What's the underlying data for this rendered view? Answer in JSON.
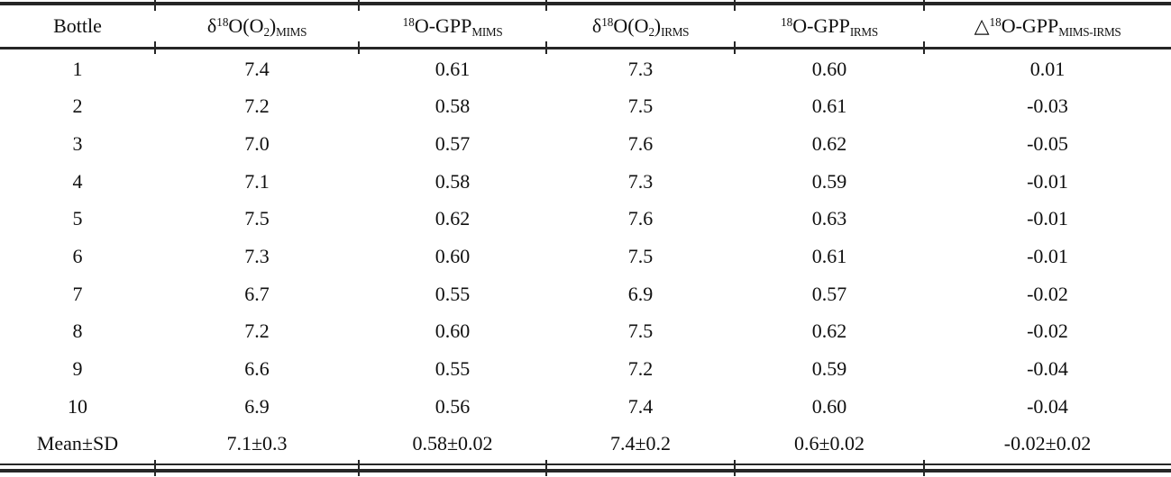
{
  "table": {
    "columns": [
      {
        "name": "bottle",
        "plain": "Bottle",
        "segments": [
          {
            "t": "text",
            "v": "Bottle"
          }
        ]
      },
      {
        "name": "d18O-O2-MIMS",
        "plain": "δ18O(O2)_MIMS",
        "segments": [
          {
            "t": "text",
            "v": "δ"
          },
          {
            "t": "sup",
            "v": "18"
          },
          {
            "t": "text",
            "v": "O(O"
          },
          {
            "t": "sub",
            "v": "2"
          },
          {
            "t": "text",
            "v": ")"
          },
          {
            "t": "sub",
            "v": "MIMS"
          }
        ]
      },
      {
        "name": "18O-GPP-MIMS",
        "plain": "18O-GPP_MIMS",
        "segments": [
          {
            "t": "sup",
            "v": "18"
          },
          {
            "t": "text",
            "v": "O-GPP"
          },
          {
            "t": "sub",
            "v": "MIMS"
          }
        ]
      },
      {
        "name": "d18O-O2-IRMS",
        "plain": "δ18O(O2)_IRMS",
        "segments": [
          {
            "t": "text",
            "v": "δ"
          },
          {
            "t": "sup",
            "v": "18"
          },
          {
            "t": "text",
            "v": "O(O"
          },
          {
            "t": "sub",
            "v": "2"
          },
          {
            "t": "text",
            "v": ")"
          },
          {
            "t": "sub",
            "v": "IRMS"
          }
        ]
      },
      {
        "name": "18O-GPP-IRMS",
        "plain": "18O-GPP_IRMS",
        "segments": [
          {
            "t": "sup",
            "v": "18"
          },
          {
            "t": "text",
            "v": "O-GPP"
          },
          {
            "t": "sub",
            "v": "IRMS"
          }
        ]
      },
      {
        "name": "delta-18O-GPP-MIMS-IRMS",
        "plain": "△18O-GPP_MIMS-IRMS",
        "segments": [
          {
            "t": "text",
            "v": "△"
          },
          {
            "t": "sup",
            "v": "18"
          },
          {
            "t": "text",
            "v": "O-GPP"
          },
          {
            "t": "sub",
            "v": "MIMS-IRMS"
          }
        ]
      }
    ],
    "rows": [
      [
        "1",
        "7.4",
        "0.61",
        "7.3",
        "0.60",
        "0.01"
      ],
      [
        "2",
        "7.2",
        "0.58",
        "7.5",
        "0.61",
        "-0.03"
      ],
      [
        "3",
        "7.0",
        "0.57",
        "7.6",
        "0.62",
        "-0.05"
      ],
      [
        "4",
        "7.1",
        "0.58",
        "7.3",
        "0.59",
        "-0.01"
      ],
      [
        "5",
        "7.5",
        "0.62",
        "7.6",
        "0.63",
        "-0.01"
      ],
      [
        "6",
        "7.3",
        "0.60",
        "7.5",
        "0.61",
        "-0.01"
      ],
      [
        "7",
        "6.7",
        "0.55",
        "6.9",
        "0.57",
        "-0.02"
      ],
      [
        "8",
        "7.2",
        "0.60",
        "7.5",
        "0.62",
        "-0.02"
      ],
      [
        "9",
        "6.6",
        "0.55",
        "7.2",
        "0.59",
        "-0.04"
      ],
      [
        "10",
        "6.9",
        "0.56",
        "7.4",
        "0.60",
        "-0.04"
      ]
    ],
    "summary_row": [
      "Mean±SD",
      "7.1±0.3",
      "0.58±0.02",
      "7.4±0.2",
      "0.6±0.02",
      "-0.02±0.02"
    ]
  },
  "chart_data": {
    "type": "table",
    "columns": [
      "Bottle",
      "δ18O(O2)_MIMS",
      "18O-GPP_MIMS",
      "δ18O(O2)_IRMS",
      "18O-GPP_IRMS",
      "Δ18O-GPP_MIMS-IRMS"
    ],
    "rows": [
      [
        "1",
        7.4,
        0.61,
        7.3,
        0.6,
        0.01
      ],
      [
        "2",
        7.2,
        0.58,
        7.5,
        0.61,
        -0.03
      ],
      [
        "3",
        7.0,
        0.57,
        7.6,
        0.62,
        -0.05
      ],
      [
        "4",
        7.1,
        0.58,
        7.3,
        0.59,
        -0.01
      ],
      [
        "5",
        7.5,
        0.62,
        7.6,
        0.63,
        -0.01
      ],
      [
        "6",
        7.3,
        0.6,
        7.5,
        0.61,
        -0.01
      ],
      [
        "7",
        6.7,
        0.55,
        6.9,
        0.57,
        -0.02
      ],
      [
        "8",
        7.2,
        0.6,
        7.5,
        0.62,
        -0.02
      ],
      [
        "9",
        6.6,
        0.55,
        7.2,
        0.59,
        -0.04
      ],
      [
        "10",
        6.9,
        0.56,
        7.4,
        0.6,
        -0.04
      ],
      [
        "Mean±SD",
        "7.1±0.3",
        "0.58±0.02",
        "7.4±0.2",
        "0.6±0.02",
        "-0.02±0.02"
      ]
    ]
  },
  "colors": {
    "background": "#ffffff",
    "text": "#0f0f0f",
    "rule": "#262626"
  }
}
